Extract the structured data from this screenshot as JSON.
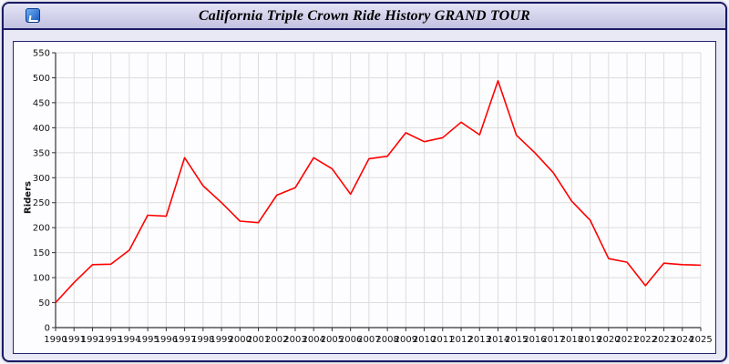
{
  "window": {
    "title": "California Triple Crown Ride History GRAND TOUR",
    "icon": "window-icon"
  },
  "chart_data": {
    "type": "line",
    "title": "California Triple Crown Ride History GRAND TOUR",
    "xlabel": "",
    "ylabel": "Riders",
    "ylim": [
      0,
      550
    ],
    "ytick_step": 50,
    "grid": true,
    "legend_position": "none",
    "x": [
      1990,
      1991,
      1992,
      1993,
      1994,
      1995,
      1996,
      1997,
      1998,
      1999,
      2000,
      2001,
      2002,
      2003,
      2004,
      2005,
      2006,
      2007,
      2008,
      2009,
      2010,
      2011,
      2012,
      2013,
      2014,
      2015,
      2016,
      2017,
      2018,
      2019,
      2020,
      2021,
      2022,
      2023,
      2024,
      2025
    ],
    "series": [
      {
        "name": "Riders",
        "color": "#ff0000",
        "values": [
          50,
          90,
          126,
          127,
          155,
          225,
          223,
          340,
          284,
          250,
          213,
          210,
          265,
          280,
          340,
          318,
          267,
          338,
          343,
          390,
          372,
          380,
          411,
          386,
          494,
          385,
          350,
          310,
          253,
          215,
          138,
          131,
          84,
          129,
          126,
          125
        ]
      }
    ],
    "colors": {
      "line": "#ff0000",
      "grid": "#dcdcdc",
      "axis": "#333333",
      "window_border": "#1b1b66",
      "background": "#e9e9f6"
    }
  }
}
